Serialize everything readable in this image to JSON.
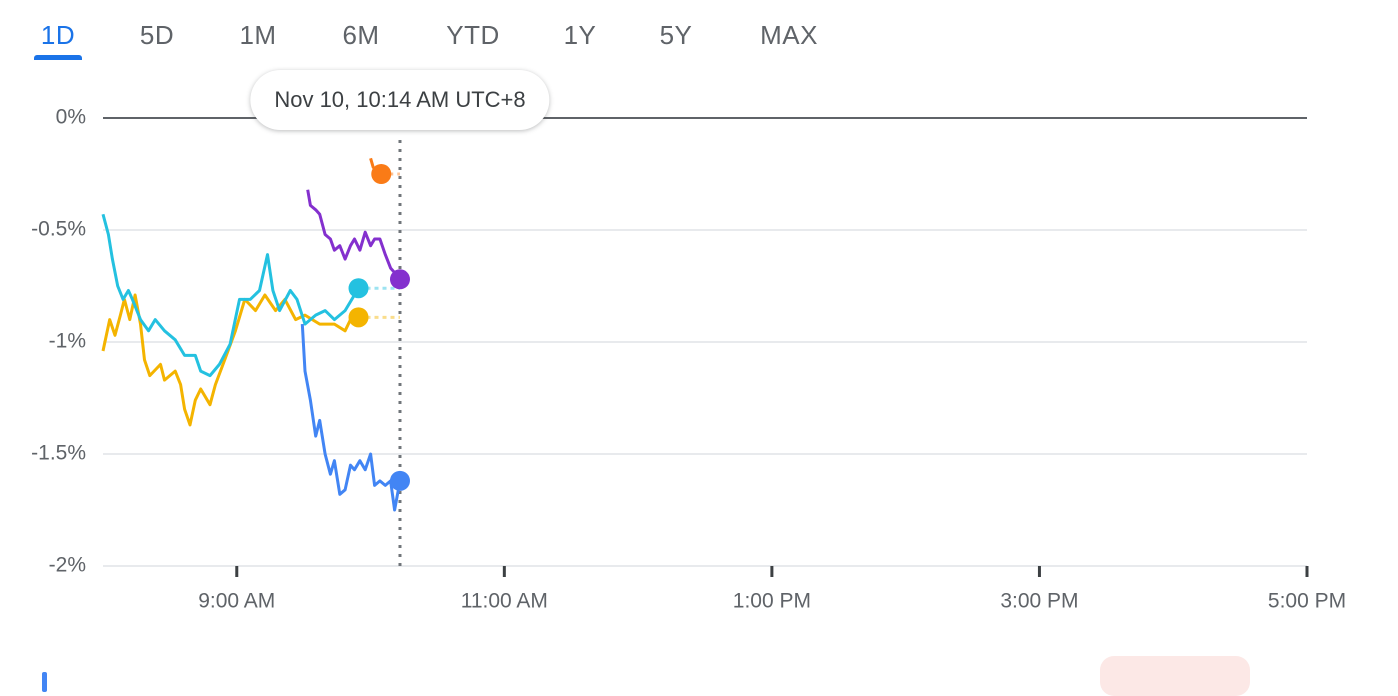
{
  "tabs": {
    "items": [
      "1D",
      "5D",
      "1M",
      "6M",
      "YTD",
      "1Y",
      "5Y",
      "MAX"
    ],
    "selected": 0
  },
  "chart_data": {
    "type": "line",
    "tooltip": "Nov 10, 10:14 AM UTC+8",
    "xlim": [
      8,
      17
    ],
    "xticks": [
      {
        "value": 9,
        "label": "9:00 AM"
      },
      {
        "value": 11,
        "label": "11:00 AM"
      },
      {
        "value": 13,
        "label": "1:00 PM"
      },
      {
        "value": 15,
        "label": "3:00 PM"
      },
      {
        "value": 17,
        "label": "5:00 PM"
      }
    ],
    "ylim": [
      -2,
      0
    ],
    "yticks": [
      {
        "value": 0,
        "label": "0%"
      },
      {
        "value": -0.5,
        "label": "-0.5%"
      },
      {
        "value": -1,
        "label": "-1%"
      },
      {
        "value": -1.5,
        "label": "-1.5%"
      },
      {
        "value": -2,
        "label": "-2%"
      }
    ],
    "grid": true,
    "series": [
      {
        "color": "#f4b400",
        "x": [
          8.0,
          8.05,
          8.09,
          8.13,
          8.16,
          8.2,
          8.24,
          8.28,
          8.31,
          8.35,
          8.43,
          8.46,
          8.54,
          8.58,
          8.61,
          8.65,
          8.69,
          8.73,
          8.8,
          8.84,
          8.91,
          8.99,
          9.06,
          9.14,
          9.21,
          9.29,
          9.36,
          9.44,
          9.51,
          9.62,
          9.73,
          9.81,
          9.85,
          9.91
        ],
        "values": [
          -1.04,
          -0.9,
          -0.97,
          -0.88,
          -0.81,
          -0.9,
          -0.79,
          -0.92,
          -1.08,
          -1.15,
          -1.1,
          -1.17,
          -1.13,
          -1.19,
          -1.3,
          -1.37,
          -1.26,
          -1.21,
          -1.28,
          -1.19,
          -1.08,
          -0.95,
          -0.81,
          -0.86,
          -0.79,
          -0.86,
          -0.81,
          -0.9,
          -0.88,
          -0.92,
          -0.92,
          -0.95,
          -0.9,
          -0.89
        ]
      },
      {
        "color": "#24c1e0",
        "x": [
          8.0,
          8.04,
          8.07,
          8.11,
          8.15,
          8.19,
          8.22,
          8.28,
          8.34,
          8.39,
          8.46,
          8.54,
          8.61,
          8.69,
          8.73,
          8.8,
          8.87,
          8.95,
          9.02,
          9.1,
          9.17,
          9.23,
          9.27,
          9.32,
          9.4,
          9.45,
          9.51,
          9.59,
          9.66,
          9.73,
          9.81,
          9.91
        ],
        "values": [
          -0.43,
          -0.52,
          -0.63,
          -0.75,
          -0.81,
          -0.77,
          -0.81,
          -0.9,
          -0.95,
          -0.9,
          -0.95,
          -0.99,
          -1.06,
          -1.06,
          -1.13,
          -1.15,
          -1.1,
          -1.01,
          -0.81,
          -0.81,
          -0.77,
          -0.61,
          -0.77,
          -0.86,
          -0.77,
          -0.81,
          -0.92,
          -0.88,
          -0.86,
          -0.9,
          -0.86,
          -0.76
        ]
      },
      {
        "color": "#4285f4",
        "x": [
          9.49,
          9.51,
          9.55,
          9.59,
          9.62,
          9.66,
          9.7,
          9.73,
          9.77,
          9.81,
          9.85,
          9.88,
          9.92,
          9.96,
          10.0,
          10.03,
          10.07,
          10.11,
          10.15,
          10.18,
          10.22
        ],
        "values": [
          -0.92,
          -1.13,
          -1.26,
          -1.42,
          -1.35,
          -1.5,
          -1.59,
          -1.53,
          -1.68,
          -1.66,
          -1.55,
          -1.57,
          -1.53,
          -1.57,
          -1.5,
          -1.64,
          -1.62,
          -1.64,
          -1.62,
          -1.75,
          -1.62
        ]
      },
      {
        "color": "#8430ce",
        "x": [
          9.53,
          9.55,
          9.59,
          9.62,
          9.66,
          9.7,
          9.73,
          9.77,
          9.81,
          9.85,
          9.88,
          9.92,
          9.96,
          10.0,
          10.03,
          10.07,
          10.11,
          10.15,
          10.18,
          10.22
        ],
        "values": [
          -0.32,
          -0.39,
          -0.41,
          -0.43,
          -0.52,
          -0.54,
          -0.59,
          -0.57,
          -0.63,
          -0.57,
          -0.54,
          -0.59,
          -0.51,
          -0.57,
          -0.54,
          -0.54,
          -0.61,
          -0.67,
          -0.69,
          -0.72
        ]
      },
      {
        "color": "#fa7b17",
        "x": [
          10.0,
          10.02,
          10.05,
          10.08
        ],
        "values": [
          -0.18,
          -0.22,
          -0.24,
          -0.25
        ]
      }
    ]
  }
}
